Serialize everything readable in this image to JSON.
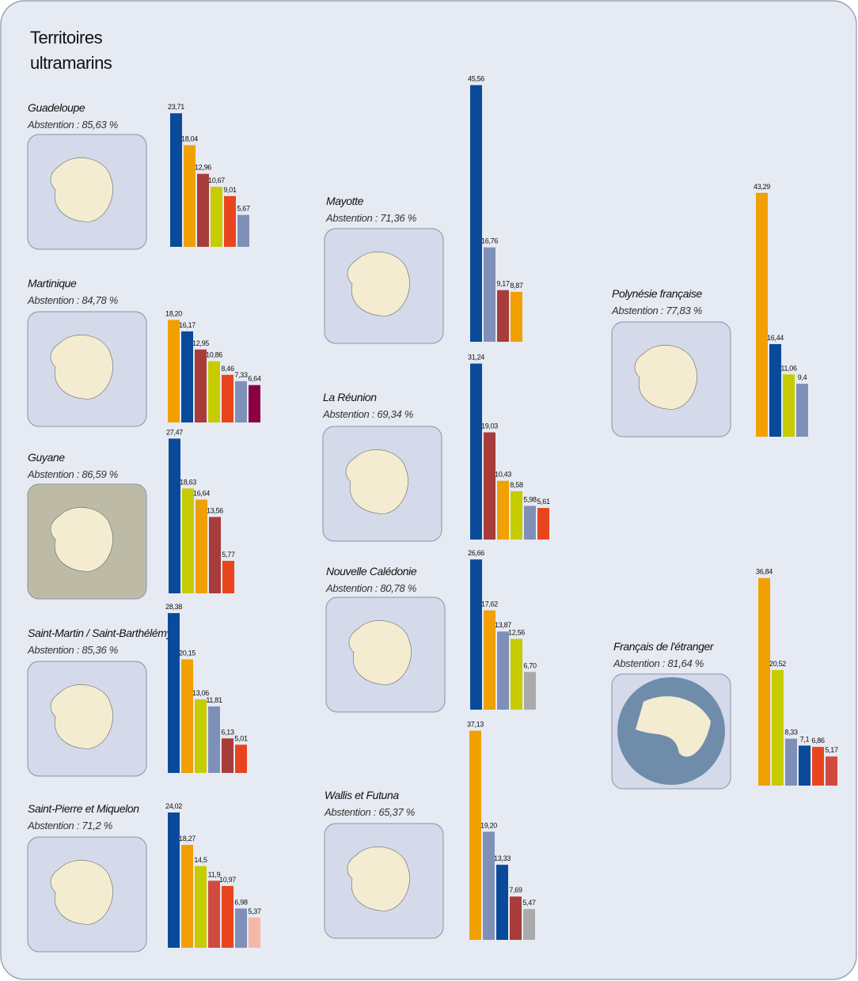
{
  "title": "Territoires ultramarins",
  "chart_data": [
    {
      "type": "bar",
      "title": "Guadeloupe",
      "subtitle": "Abstention : 85,63 %",
      "values": [
        23.71,
        18.04,
        12.96,
        10.67,
        9.01,
        5.67
      ],
      "value_labels": [
        "23,71",
        "18,04",
        "12,96",
        "10,67",
        "9,01",
        "5,67"
      ],
      "colors": [
        "#0a4a9a",
        "#f0a000",
        "#a83c3a",
        "#c6cc00",
        "#e8451e",
        "#7f90b8"
      ]
    },
    {
      "type": "bar",
      "title": "Martinique",
      "subtitle": "Abstention : 84,78 %",
      "values": [
        18.2,
        16.17,
        12.95,
        10.86,
        8.46,
        7.33,
        6.64
      ],
      "value_labels": [
        "18,20",
        "16,17",
        "12,95",
        "10,86",
        "8,46",
        "7,33",
        "6,64"
      ],
      "colors": [
        "#f0a000",
        "#0a4a9a",
        "#a83c3a",
        "#c6cc00",
        "#e8451e",
        "#7f90b8",
        "#8b0045"
      ]
    },
    {
      "type": "bar",
      "title": "Guyane",
      "subtitle": "Abstention : 86,59 %",
      "values": [
        27.47,
        18.63,
        16.64,
        13.56,
        5.77
      ],
      "value_labels": [
        "27,47",
        "18,63",
        "16,64",
        "13,56",
        "5,77"
      ],
      "colors": [
        "#0a4a9a",
        "#c6cc00",
        "#f0a000",
        "#a83c3a",
        "#e8451e"
      ]
    },
    {
      "type": "bar",
      "title": "Saint-Martin / Saint-Barthélémy",
      "subtitle": "Abstention : 85,36 %",
      "values": [
        28.38,
        20.15,
        13.06,
        11.81,
        6.13,
        5.01
      ],
      "value_labels": [
        "28,38",
        "20,15",
        "13,06",
        "11,81",
        "6,13",
        "5,01"
      ],
      "colors": [
        "#0a4a9a",
        "#f0a000",
        "#c6cc00",
        "#7f90b8",
        "#a83c3a",
        "#e8451e"
      ]
    },
    {
      "type": "bar",
      "title": "Saint-Pierre et Miquelon",
      "subtitle": "Abstention : 71,2 %",
      "values": [
        24.02,
        18.27,
        14.5,
        11.9,
        10.97,
        6.98,
        5.37
      ],
      "value_labels": [
        "24,02",
        "18,27",
        "14,5",
        "11,9",
        "10,97",
        "6,98",
        "5,37"
      ],
      "colors": [
        "#0a4a9a",
        "#f0a000",
        "#c6cc00",
        "#d04a40",
        "#e8451e",
        "#7f90b8",
        "#f5b8a8"
      ]
    },
    {
      "type": "bar",
      "title": "Mayotte",
      "subtitle": "Abstention : 71,36 %",
      "values": [
        45.56,
        16.76,
        9.17,
        8.87
      ],
      "value_labels": [
        "45,56",
        "16,76",
        "9,17",
        "8,87"
      ],
      "colors": [
        "#0a4a9a",
        "#7f90b8",
        "#a83c3a",
        "#f0a000"
      ]
    },
    {
      "type": "bar",
      "title": "La Réunion",
      "subtitle": "Abstention : 69,34 %",
      "values": [
        31.24,
        19.03,
        10.43,
        8.58,
        5.98,
        5.61
      ],
      "value_labels": [
        "31,24",
        "19,03",
        "10,43",
        "8,58",
        "5,98",
        "5,61"
      ],
      "colors": [
        "#0a4a9a",
        "#a83c3a",
        "#f0a000",
        "#c6cc00",
        "#7f90b8",
        "#e8451e"
      ]
    },
    {
      "type": "bar",
      "title": "Nouvelle Calédonie",
      "subtitle": "Abstention : 80,78 %",
      "values": [
        26.66,
        17.62,
        13.87,
        12.56,
        6.7
      ],
      "value_labels": [
        "26,66",
        "17,62",
        "13,87",
        "12,56",
        "6,70"
      ],
      "colors": [
        "#0a4a9a",
        "#f0a000",
        "#7f90b8",
        "#c6cc00",
        "#aaaaaa"
      ]
    },
    {
      "type": "bar",
      "title": "Wallis et Futuna",
      "subtitle": "Abstention : 65,37 %",
      "values": [
        37.13,
        19.2,
        13.33,
        7.69,
        5.47
      ],
      "value_labels": [
        "37,13",
        "19,20",
        "13,33",
        "7,69",
        "5,47"
      ],
      "colors": [
        "#f0a000",
        "#7f90b8",
        "#0a4a9a",
        "#a83c3a",
        "#aaaaaa"
      ]
    },
    {
      "type": "bar",
      "title": "Polynésie française",
      "subtitle": "Abstention : 77,83 %",
      "values": [
        43.29,
        16.44,
        11.06,
        9.4
      ],
      "value_labels": [
        "43,29",
        "16,44",
        "11,06",
        "9,4"
      ],
      "colors": [
        "#f0a000",
        "#0a4a9a",
        "#c6cc00",
        "#7f90b8"
      ]
    },
    {
      "type": "bar",
      "title": "Français de l'étranger",
      "subtitle": "Abstention : 81,64 %",
      "values": [
        36.84,
        20.52,
        8.33,
        7.1,
        6.86,
        5.17
      ],
      "value_labels": [
        "36,84",
        "20,52",
        "8,33",
        "7,1",
        "6,86",
        "5,17"
      ],
      "colors": [
        "#f0a000",
        "#c6cc00",
        "#7f90b8",
        "#0a4a9a",
        "#e8451e",
        "#d04a40"
      ]
    }
  ]
}
